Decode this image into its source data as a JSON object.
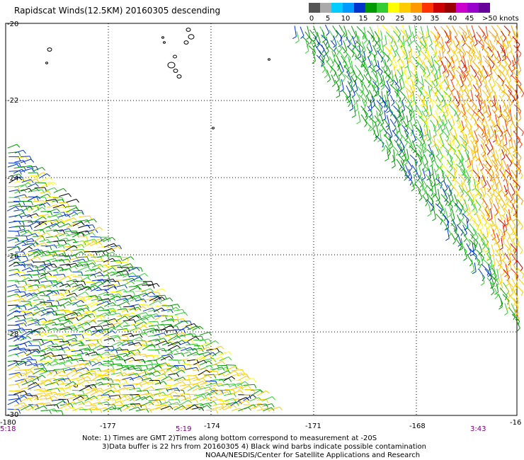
{
  "title": "Rapidscat Winds(12.5KM) 20160305 descending",
  "colorbar": {
    "colors": [
      "#555555",
      "#aaaaaa",
      "#00ccff",
      "#0099ff",
      "#0033cc",
      "#009900",
      "#33cc33",
      "#ffff00",
      "#ffcc00",
      "#ff9900",
      "#ff3300",
      "#cc0000",
      "#990000",
      "#cc00cc",
      "#9900cc",
      "#660099"
    ],
    "labels": [
      "0",
      "5",
      "10",
      "15",
      "20",
      "25",
      "30",
      "35",
      "40",
      "45",
      ">50 knots"
    ]
  },
  "map": {
    "lat_labels": [
      "-20",
      "-22",
      "-24",
      "-26",
      "-28",
      "-30"
    ],
    "lon_labels": [
      "-180",
      "-177",
      "-174",
      "-171",
      "-168",
      "-16"
    ],
    "time_labels": [
      "5:18",
      "5:19",
      "3:43"
    ]
  },
  "notes": [
    "Note: 1) Times are GMT 2)Times along bottom correspond to measurement at -20S",
    "3)Data buffer is 22 hrs from 20160305 4) Black wind barbs indicate possible contamination",
    "NOAA/NESDIS/Center for Satellite Applications and Research"
  ]
}
